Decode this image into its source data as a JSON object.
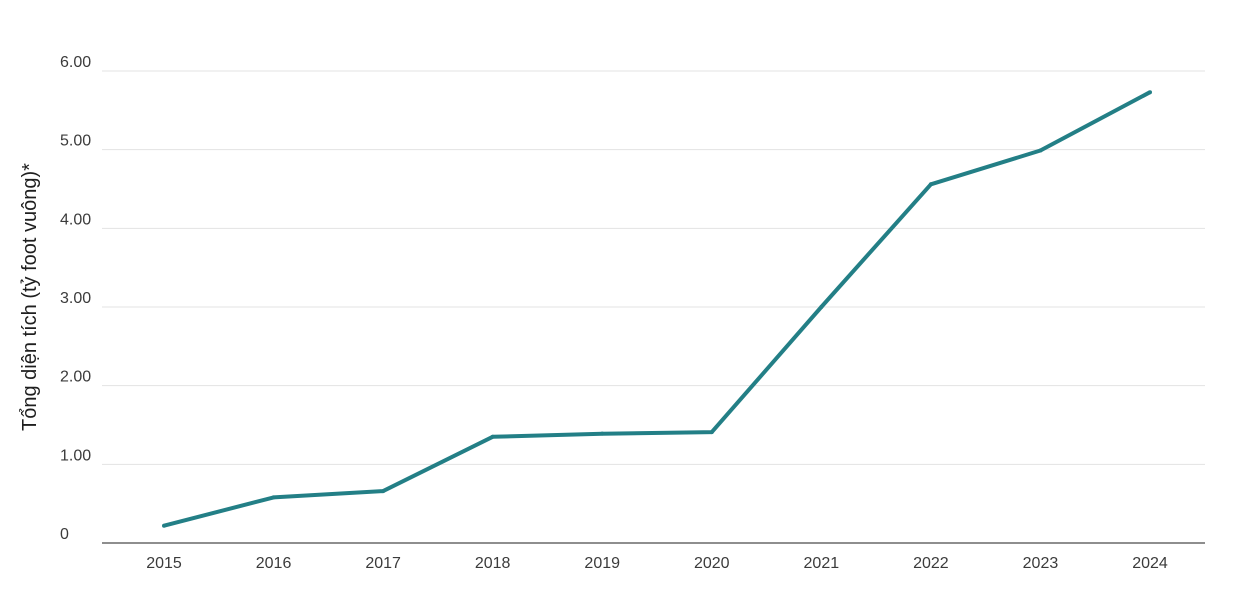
{
  "chart_data": {
    "type": "line",
    "title": "",
    "xlabel": "",
    "ylabel": "Tổng diện tích (tỷ foot vuông)*",
    "x": [
      "2015",
      "2016",
      "2017",
      "2018",
      "2019",
      "2020",
      "2021",
      "2022",
      "2023",
      "2024"
    ],
    "series": [
      {
        "values": [
          0.22,
          0.58,
          0.66,
          1.35,
          1.39,
          1.41,
          3.0,
          4.56,
          4.99,
          5.73
        ]
      }
    ],
    "ylim": [
      0,
      6
    ],
    "y_ticks": [
      0,
      1,
      2,
      3,
      4,
      5,
      6
    ],
    "y_tick_labels": [
      "0",
      "1.00",
      "2.00",
      "3.00",
      "4.00",
      "5.00",
      "6.00"
    ],
    "grid": "horizontal",
    "colors": {
      "line": "#237f86"
    }
  }
}
